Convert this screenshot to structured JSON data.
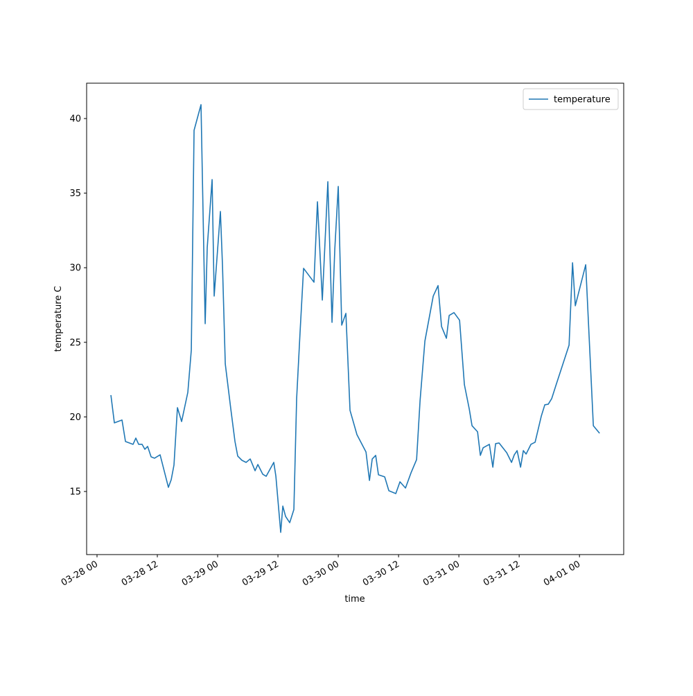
{
  "chart_data": {
    "type": "line",
    "xlabel": "time",
    "ylabel": "temperature C",
    "x": [
      2.76,
      3.45,
      4.97,
      5.66,
      7.17,
      7.72,
      8.28,
      8.97,
      9.52,
      10.07,
      10.76,
      11.45,
      12.55,
      14.2,
      14.76,
      15.31,
      16.0,
      16.83,
      18.07,
      18.76,
      19.31,
      20.69,
      21.52,
      21.93,
      22.9,
      23.31,
      24.55,
      24.97,
      25.52,
      26.62,
      27.45,
      28.0,
      28.83,
      29.66,
      30.48,
      31.45,
      32.0,
      32.97,
      33.66,
      35.17,
      35.59,
      36.55,
      36.97,
      37.52,
      38.34,
      39.17,
      39.72,
      40.41,
      41.1,
      43.17,
      43.86,
      44.83,
      45.93,
      46.76,
      47.31,
      48.0,
      48.69,
      49.52,
      50.34,
      51.72,
      53.52,
      54.21,
      54.76,
      55.45,
      56.0,
      57.24,
      58.07,
      59.45,
      60.28,
      61.38,
      62.48,
      63.59,
      64.28,
      65.24,
      66.9,
      67.86,
      68.55,
      69.52,
      70.07,
      71.03,
      72.14,
      73.1,
      74.07,
      74.62,
      75.72,
      76.28,
      76.83,
      78.07,
      78.76,
      79.31,
      80.0,
      81.52,
      82.48,
      83.03,
      83.59,
      84.28,
      84.83,
      85.38,
      86.34,
      87.17,
      88.41,
      89.1,
      89.79,
      90.48,
      91.31,
      93.93,
      94.62,
      95.17,
      97.24,
      98.76,
      100.0
    ],
    "series": [
      {
        "name": "temperature",
        "color": "#1f77b4",
        "values": [
          21.46,
          19.6,
          19.79,
          18.35,
          18.16,
          18.58,
          18.16,
          18.16,
          17.83,
          18.02,
          17.32,
          17.23,
          17.46,
          15.28,
          15.79,
          16.77,
          20.62,
          19.69,
          21.65,
          24.48,
          39.21,
          40.93,
          26.25,
          31.36,
          35.91,
          28.1,
          33.77,
          30.1,
          23.55,
          20.53,
          18.35,
          17.37,
          17.09,
          16.95,
          17.18,
          16.39,
          16.81,
          16.16,
          16.02,
          16.95,
          16.02,
          12.26,
          14.02,
          13.33,
          12.91,
          13.79,
          21.23,
          25.73,
          29.96,
          29.03,
          34.42,
          27.83,
          35.77,
          26.34,
          31.22,
          35.45,
          26.15,
          26.94,
          20.44,
          18.81,
          17.65,
          15.74,
          17.18,
          17.42,
          16.12,
          15.98,
          15.05,
          14.86,
          15.65,
          15.23,
          16.25,
          17.14,
          21.09,
          25.08,
          28.1,
          28.8,
          26.06,
          25.27,
          26.8,
          26.99,
          26.48,
          22.16,
          20.53,
          19.41,
          19.0,
          17.42,
          17.93,
          18.16,
          16.63,
          18.21,
          18.25,
          17.6,
          16.95,
          17.46,
          17.74,
          16.63,
          17.74,
          17.51,
          18.16,
          18.3,
          20.06,
          20.81,
          20.85,
          21.23,
          22.11,
          24.81,
          30.33,
          27.45,
          30.2,
          19.41,
          18.9
        ]
      }
    ],
    "xlim": [
      -2.07,
      104.8
    ],
    "ylim": [
      10.77,
      42.37
    ],
    "xticks": [
      {
        "value": 0,
        "label": "03-28 00"
      },
      {
        "value": 12,
        "label": "03-28 12"
      },
      {
        "value": 24,
        "label": "03-29 00"
      },
      {
        "value": 36,
        "label": "03-29 12"
      },
      {
        "value": 48,
        "label": "03-30 00"
      },
      {
        "value": 60,
        "label": "03-30 12"
      },
      {
        "value": 72,
        "label": "03-31 00"
      },
      {
        "value": 84,
        "label": "03-31 12"
      },
      {
        "value": 96,
        "label": "04-01 00"
      }
    ],
    "yticks": [
      15,
      20,
      25,
      30,
      35,
      40
    ],
    "grid": false,
    "legend": "upper right"
  }
}
